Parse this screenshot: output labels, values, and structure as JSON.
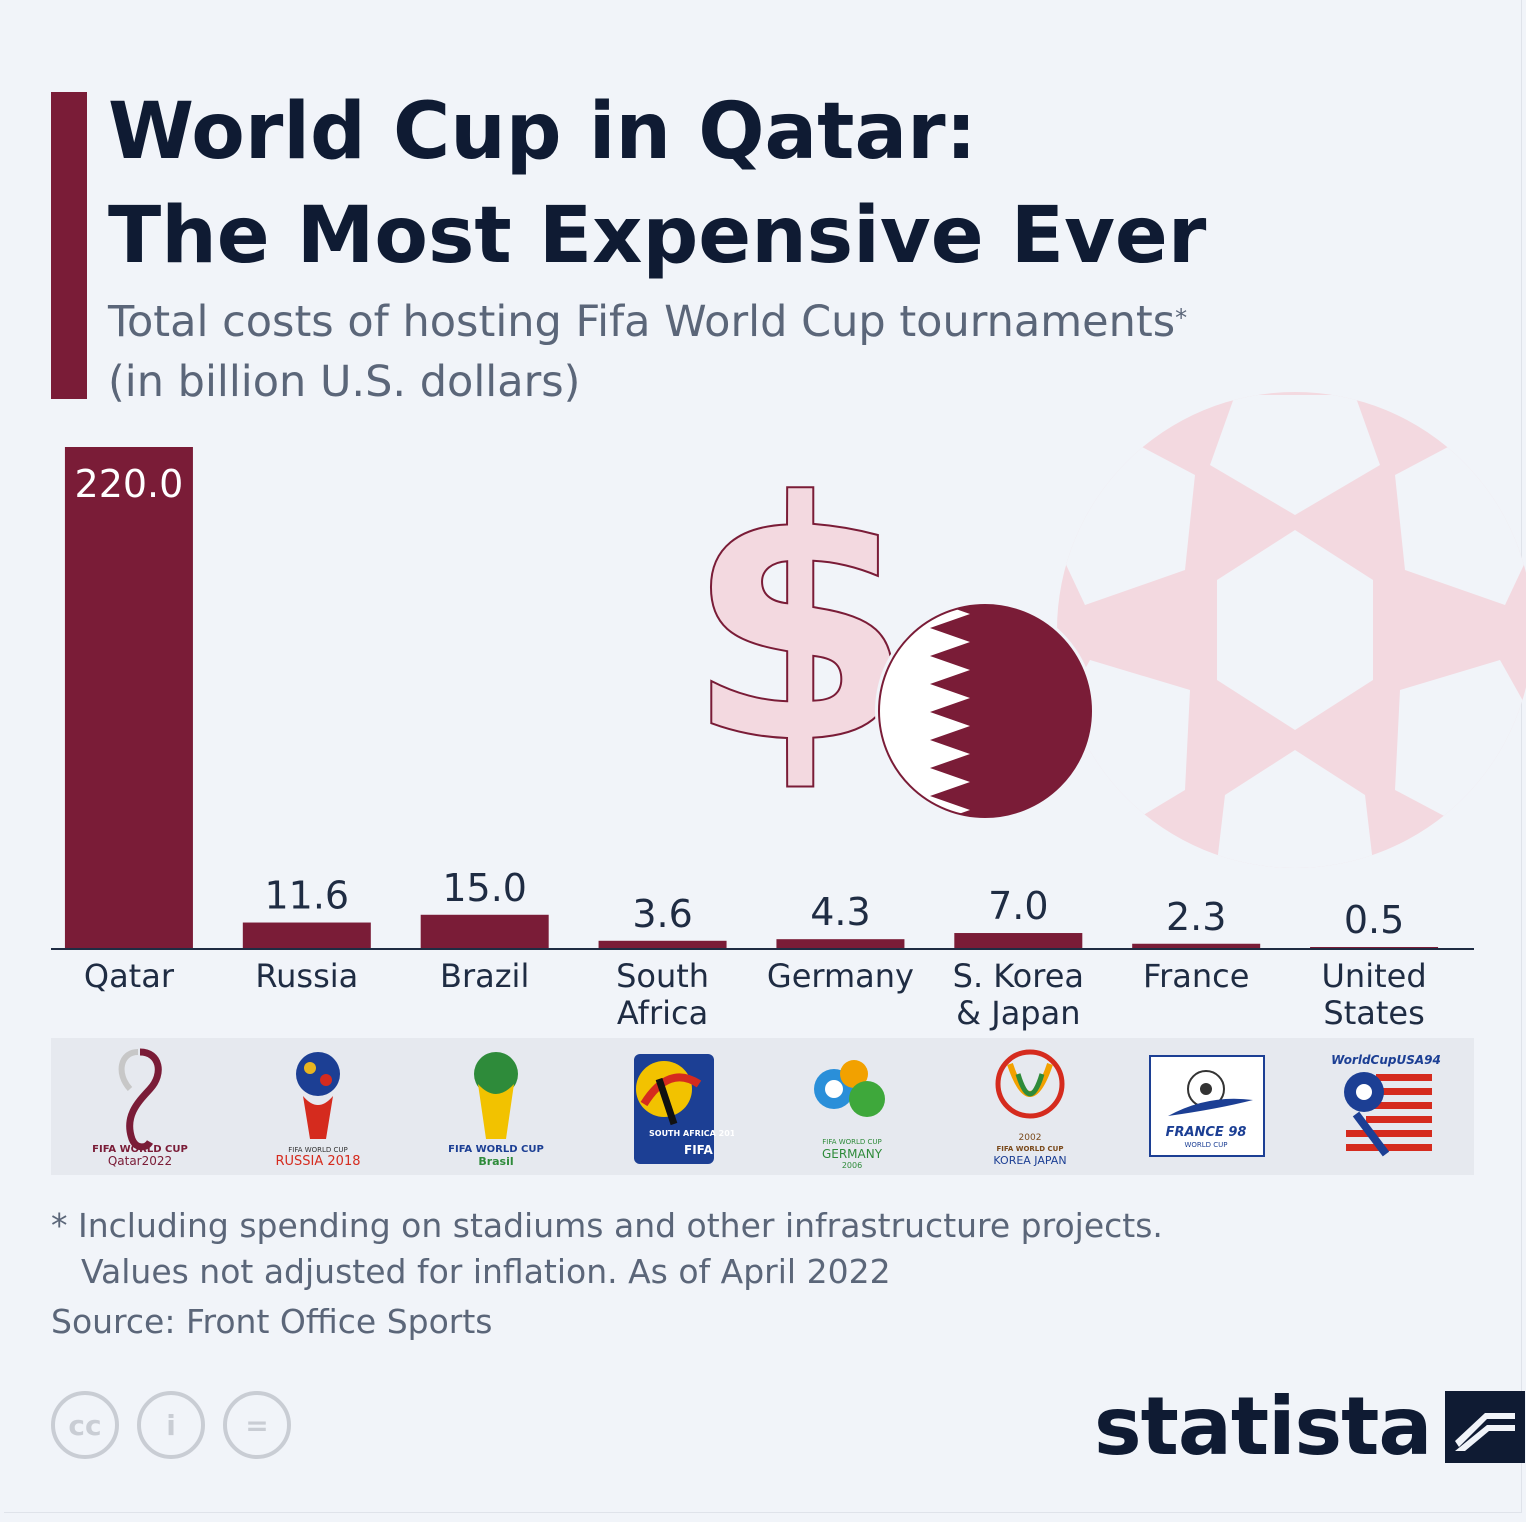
{
  "header": {
    "title": "World Cup in Qatar:\nThe Most Expensive Ever",
    "subtitle_line1": "Total costs of hosting Fifa World Cup tournaments",
    "subtitle_asterisk": "*",
    "subtitle_line2": "(in billion U.S. dollars)"
  },
  "chart_data": {
    "type": "bar",
    "categories": [
      "Qatar",
      "Russia",
      "Brazil",
      "South Africa",
      "Germany",
      "S. Korea & Japan",
      "France",
      "United States"
    ],
    "category_lines": [
      [
        "Qatar"
      ],
      [
        "Russia"
      ],
      [
        "Brazil"
      ],
      [
        "South",
        "Africa"
      ],
      [
        "Germany"
      ],
      [
        "S. Korea",
        "& Japan"
      ],
      [
        "France"
      ],
      [
        "United",
        "States"
      ]
    ],
    "values": [
      220.0,
      11.6,
      15.0,
      3.6,
      4.3,
      7.0,
      2.3,
      0.5
    ],
    "value_labels": [
      "220.0",
      "11.6",
      "15.0",
      "3.6",
      "4.3",
      "7.0",
      "2.3",
      "0.5"
    ],
    "ylim": [
      0,
      220
    ],
    "grid": false,
    "bar_color": "#7a1c37",
    "title": "World Cup in Qatar: The Most Expensive Ever",
    "xlabel": "",
    "ylabel": ""
  },
  "logos": [
    {
      "icon": "qatar-2022-logo",
      "text": "FIFA WORLD CUP Qatar2022"
    },
    {
      "icon": "russia-2018-logo",
      "text": "FIFA WORLD CUP RUSSIA 2018"
    },
    {
      "icon": "brasil-2014-logo",
      "text": "FIFA WORLD CUP Brasil"
    },
    {
      "icon": "south-africa-2010-logo",
      "text": "SOUTH AFRICA 2010 FIFA WORLD CUP"
    },
    {
      "icon": "germany-2006-logo",
      "text": "FIFA WORLD CUP GERMANY 2006"
    },
    {
      "icon": "korea-japan-2002-logo",
      "text": "2002 FIFA WORLD CUP KOREA JAPAN"
    },
    {
      "icon": "france-98-logo",
      "text": "FRANCE 98 WORLD CUP"
    },
    {
      "icon": "usa-94-logo",
      "text": "WorldCupUSA94"
    }
  ],
  "footer": {
    "footnote_line1": "* Including spending on stadiums and other infrastructure projects.",
    "footnote_line2": "Values not adjusted for inflation. As of April 2022",
    "source": "Source: Front Office Sports",
    "brand": "statista",
    "license_icons": [
      "cc-icon",
      "attribution-icon",
      "no-derivatives-icon"
    ],
    "license_labels": [
      "cc",
      "i",
      "="
    ]
  },
  "colors": {
    "accent": "#7a1c37",
    "title": "#0f1b33",
    "muted": "#5b6679",
    "decor_pink": "#f3d9e0"
  }
}
